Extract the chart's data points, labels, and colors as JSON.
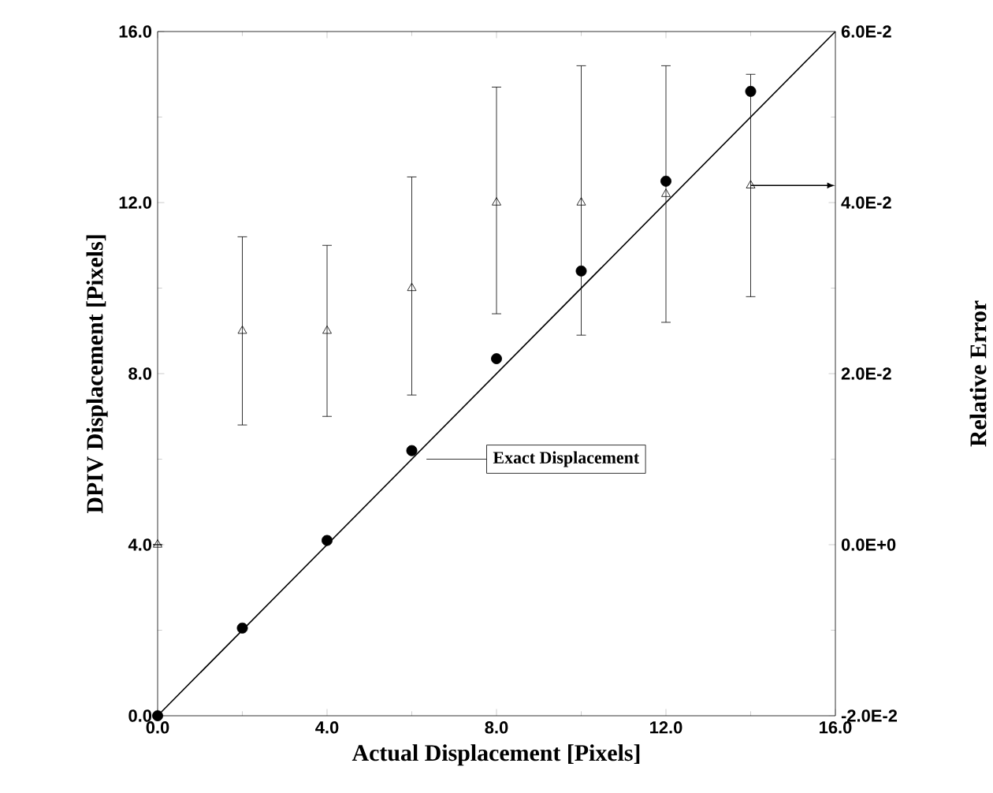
{
  "chart_data": {
    "type": "scatter",
    "xlabel": "Actual Displacement [Pixels]",
    "ylabel": "DPIV Displacement [Pixels]",
    "y2label": "Relative Error",
    "xlim": [
      0,
      16
    ],
    "xticks": [
      {
        "value": 0,
        "label": "0.0"
      },
      {
        "value": 4,
        "label": "4.0"
      },
      {
        "value": 8,
        "label": "8.0"
      },
      {
        "value": 12,
        "label": "12.0"
      },
      {
        "value": 16,
        "label": "16.0"
      }
    ],
    "ylim": [
      0,
      16
    ],
    "yticks": [
      {
        "value": 0,
        "label": "0.0"
      },
      {
        "value": 4,
        "label": "4.0"
      },
      {
        "value": 8,
        "label": "8.0"
      },
      {
        "value": 12,
        "label": "12.0"
      },
      {
        "value": 16,
        "label": "16.0"
      }
    ],
    "y2lim": [
      -0.02,
      0.06
    ],
    "y2ticks": [
      {
        "value": -0.02,
        "label": "-2.0E-2"
      },
      {
        "value": 0,
        "label": "0.0E+0"
      },
      {
        "value": 0.02,
        "label": "2.0E-2"
      },
      {
        "value": 0.04,
        "label": "4.0E-2"
      },
      {
        "value": 0.06,
        "label": "6.0E-2"
      }
    ],
    "series": [
      {
        "type": "scatter",
        "marker": "circle",
        "color": "#000000",
        "x": [
          0,
          2,
          4,
          6,
          8,
          10,
          12,
          14
        ],
        "values": [
          0,
          2.05,
          4.1,
          6.2,
          8.35,
          10.4,
          12.5,
          14.6
        ]
      },
      {
        "type": "scatter",
        "axis": "y2",
        "marker": "triangle",
        "color": "#000000",
        "x": [
          0,
          2,
          4,
          6,
          8,
          10,
          12,
          14
        ],
        "values": [
          0,
          0.025,
          0.025,
          0.03,
          0.04,
          0.04,
          0.041,
          0.042
        ],
        "errors": [
          null,
          [
            0.014,
            0.036
          ],
          [
            0.015,
            0.035
          ],
          [
            0.0175,
            0.043
          ],
          [
            0.027,
            0.0535
          ],
          [
            0.0245,
            0.056
          ],
          [
            0.026,
            0.056
          ],
          [
            0.029,
            0.055
          ]
        ]
      },
      {
        "type": "line",
        "marker": "none",
        "color": "#000000",
        "x": [
          0,
          16
        ],
        "values": [
          0,
          16
        ]
      }
    ],
    "annotations": [
      "Exact Displacement"
    ]
  }
}
